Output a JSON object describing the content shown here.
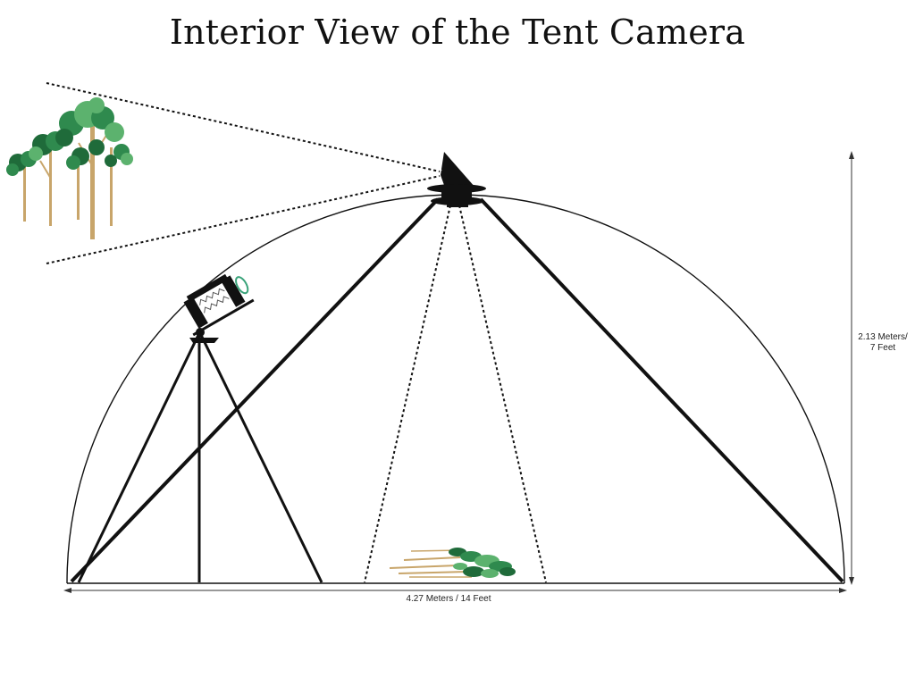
{
  "title": "Interior View of the Tent Camera",
  "dimensions": {
    "height_line1": "2.13 Meters/",
    "height_line2": "7 Feet",
    "width": "4.27 Meters / 14 Feet"
  },
  "colors": {
    "ink": "#111111",
    "foliage_dark": "#1f6b3a",
    "foliage_mid": "#2f8a4e",
    "foliage_light": "#5cb26e",
    "trunk": "#c8a56a",
    "lens_accent": "#3aa37a"
  }
}
